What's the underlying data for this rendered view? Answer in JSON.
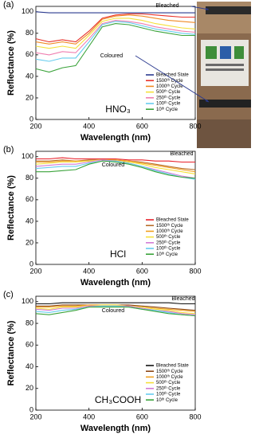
{
  "chart_data": [
    {
      "type": "line",
      "panel_label": "(a)",
      "label": "HNO₃",
      "annotations": [
        "Bleached",
        "Coloured"
      ],
      "xlabel": "Wavelength (nm)",
      "ylabel": "Reflectance (%)",
      "xlim": [
        200,
        800
      ],
      "ylim": [
        0,
        105
      ],
      "xticks": [
        200,
        400,
        600,
        800
      ],
      "yticks": [
        0,
        20,
        40,
        60,
        80,
        100
      ],
      "x": [
        200,
        250,
        300,
        350,
        400,
        450,
        500,
        550,
        600,
        650,
        700,
        750,
        800
      ],
      "series": [
        {
          "name": "Bleached State",
          "color": "#2b3a8f",
          "values": [
            100,
            99,
            99,
            99,
            99,
            99,
            99,
            99,
            99,
            99,
            99,
            99,
            99
          ]
        },
        {
          "name": "1500ᵗʰ Cycle",
          "color": "#e8312a",
          "values": [
            75,
            72,
            74,
            72,
            82,
            94,
            97,
            98,
            98,
            97,
            96,
            95,
            95
          ]
        },
        {
          "name": "1000ᵗʰ Cycle",
          "color": "#f08a24",
          "values": [
            72,
            70,
            72,
            70,
            80,
            93,
            96,
            97,
            96,
            94,
            92,
            91,
            90
          ]
        },
        {
          "name": "500ᵗʰ Cycle",
          "color": "#f5e03a",
          "values": [
            68,
            66,
            68,
            66,
            78,
            91,
            94,
            94,
            92,
            89,
            87,
            85,
            84
          ]
        },
        {
          "name": "250ᵗʰ Cycle",
          "color": "#f07fb0",
          "values": [
            62,
            60,
            63,
            62,
            75,
            89,
            92,
            91,
            89,
            86,
            84,
            82,
            81
          ]
        },
        {
          "name": "100ᵗʰ Cycle",
          "color": "#66ccee",
          "values": [
            56,
            54,
            57,
            57,
            72,
            88,
            91,
            90,
            87,
            84,
            82,
            80,
            79
          ]
        },
        {
          "name": "10ᵗʰ Cycle",
          "color": "#3aa33a",
          "values": [
            47,
            44,
            48,
            50,
            68,
            86,
            89,
            88,
            85,
            82,
            80,
            78,
            78
          ]
        }
      ]
    },
    {
      "type": "line",
      "panel_label": "(b)",
      "label": "HCl",
      "annotations": [
        "Bleached",
        "Coloured"
      ],
      "xlabel": "Wavelength (nm)",
      "ylabel": "Reflectance (%)",
      "xlim": [
        200,
        800
      ],
      "ylim": [
        0,
        105
      ],
      "xticks": [
        200,
        400,
        600,
        800
      ],
      "yticks": [
        0,
        20,
        40,
        60,
        80,
        100
      ],
      "x": [
        200,
        250,
        300,
        350,
        400,
        450,
        500,
        550,
        600,
        650,
        700,
        750,
        800
      ],
      "series": [
        {
          "name": "Bleached State",
          "color": "#e8202a",
          "values": [
            98,
            98,
            99,
            98,
            98,
            98,
            98,
            97,
            97,
            96,
            96,
            95,
            95
          ]
        },
        {
          "name": "1500ᵗʰ Cycle",
          "color": "#b86d2a",
          "values": [
            96,
            96,
            97,
            96,
            97,
            97,
            97,
            96,
            95,
            93,
            91,
            89,
            88
          ]
        },
        {
          "name": "1000ᵗʰ Cycle",
          "color": "#f0a020",
          "values": [
            95,
            95,
            96,
            96,
            96,
            97,
            97,
            96,
            94,
            92,
            90,
            88,
            86
          ]
        },
        {
          "name": "500ᵗʰ Cycle",
          "color": "#f5e03a",
          "values": [
            93,
            94,
            95,
            95,
            96,
            97,
            96,
            95,
            93,
            90,
            88,
            86,
            84
          ]
        },
        {
          "name": "250ᵗʰ Cycle",
          "color": "#d27bd6",
          "values": [
            91,
            92,
            93,
            93,
            95,
            97,
            96,
            94,
            91,
            88,
            85,
            82,
            80
          ]
        },
        {
          "name": "100ᵗʰ Cycle",
          "color": "#66ccee",
          "values": [
            89,
            90,
            91,
            91,
            94,
            96,
            96,
            94,
            91,
            87,
            84,
            81,
            79
          ]
        },
        {
          "name": "10ᵗʰ Cycle",
          "color": "#3aa33a",
          "values": [
            86,
            86,
            87,
            88,
            93,
            96,
            95,
            93,
            90,
            86,
            83,
            81,
            80
          ]
        }
      ]
    },
    {
      "type": "line",
      "panel_label": "(c)",
      "label": "CH₃COOH",
      "annotations": [
        "Bleached",
        "Coloured"
      ],
      "xlabel": "Wavelength (nm)",
      "ylabel": "Reflectance (%)",
      "xlim": [
        200,
        800
      ],
      "ylim": [
        0,
        105
      ],
      "xticks": [
        200,
        400,
        600,
        800
      ],
      "yticks": [
        0,
        20,
        40,
        60,
        80,
        100
      ],
      "x": [
        200,
        250,
        300,
        350,
        400,
        450,
        500,
        550,
        600,
        650,
        700,
        750,
        800
      ],
      "series": [
        {
          "name": "Bleached State",
          "color": "#111111",
          "values": [
            98,
            98,
            99,
            99,
            99,
            99,
            99,
            99,
            99,
            99,
            99,
            98,
            98
          ]
        },
        {
          "name": "1500ᵗʰ Cycle",
          "color": "#8b4513",
          "values": [
            96,
            96,
            97,
            97,
            97,
            97,
            97,
            97,
            96,
            95,
            94,
            93,
            92
          ]
        },
        {
          "name": "1000ᵗʰ Cycle",
          "color": "#f0a020",
          "values": [
            95,
            95,
            96,
            96,
            97,
            97,
            97,
            96,
            95,
            94,
            93,
            92,
            91
          ]
        },
        {
          "name": "500ᵗʰ Cycle",
          "color": "#f5e03a",
          "values": [
            94,
            93,
            95,
            95,
            96,
            97,
            97,
            96,
            95,
            93,
            92,
            90,
            89
          ]
        },
        {
          "name": "250ᵗʰ Cycle",
          "color": "#d27bd6",
          "values": [
            93,
            92,
            94,
            94,
            96,
            96,
            96,
            96,
            94,
            92,
            91,
            89,
            88
          ]
        },
        {
          "name": "100ᵗʰ Cycle",
          "color": "#66ccee",
          "values": [
            91,
            90,
            92,
            93,
            95,
            96,
            96,
            95,
            93,
            92,
            90,
            88,
            87
          ]
        },
        {
          "name": "10ᵗʰ Cycle",
          "color": "#3aa33a",
          "values": [
            89,
            88,
            90,
            92,
            95,
            95,
            95,
            95,
            93,
            91,
            89,
            88,
            87
          ]
        }
      ]
    }
  ]
}
